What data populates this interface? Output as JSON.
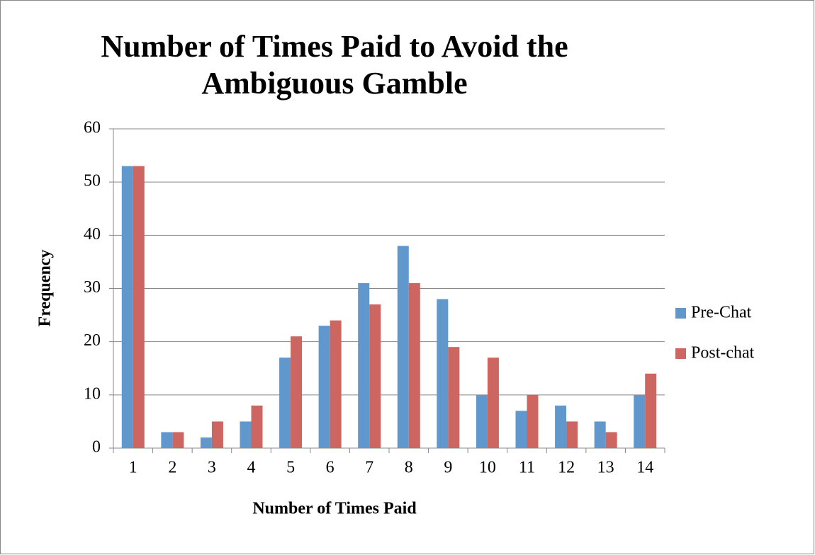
{
  "chart_data": {
    "type": "bar",
    "title": "Number of Times Paid to Avoid the Ambiguous Gamble",
    "x_label": "Number of Times Paid",
    "y_label": "Frequency",
    "categories": [
      "1",
      "2",
      "3",
      "4",
      "5",
      "6",
      "7",
      "8",
      "9",
      "10",
      "11",
      "12",
      "13",
      "14"
    ],
    "series": [
      {
        "name": "Pre-Chat",
        "color": "#6097cc",
        "values": [
          53,
          3,
          2,
          5,
          17,
          23,
          31,
          38,
          28,
          10,
          7,
          8,
          5,
          10
        ]
      },
      {
        "name": "Post-chat",
        "color": "#cd6660",
        "values": [
          53,
          3,
          5,
          8,
          21,
          24,
          27,
          31,
          19,
          17,
          10,
          5,
          3,
          14
        ]
      }
    ],
    "ylim": [
      0,
      60
    ],
    "yticks": [
      0,
      10,
      20,
      30,
      40,
      50,
      60
    ],
    "grid": true,
    "legend": "right"
  }
}
